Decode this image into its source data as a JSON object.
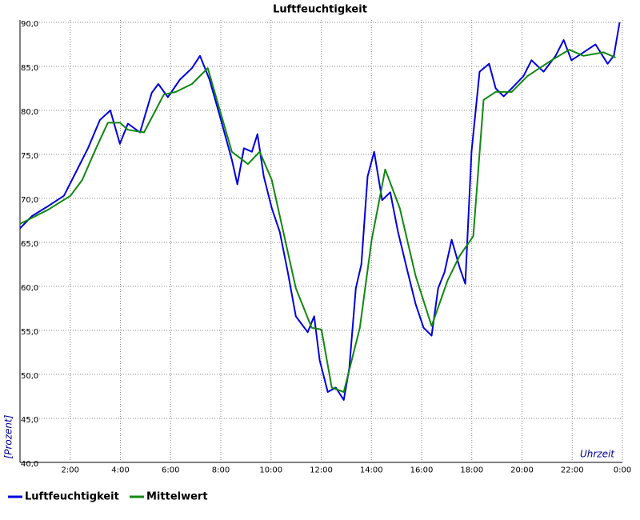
{
  "chart_data": {
    "type": "line",
    "title": "Luftfeuchtigkeit",
    "x_label": "Uhrzeit",
    "y_label": "[Prozent]",
    "xlim": [
      0,
      24
    ],
    "xticks": [
      {
        "value": 2,
        "label": "2:00"
      },
      {
        "value": 4,
        "label": "4:00"
      },
      {
        "value": 6,
        "label": "6:00"
      },
      {
        "value": 8,
        "label": "8:00"
      },
      {
        "value": 10,
        "label": "10:00"
      },
      {
        "value": 12,
        "label": "12:00"
      },
      {
        "value": 14,
        "label": "14:00"
      },
      {
        "value": 16,
        "label": "16:00"
      },
      {
        "value": 18,
        "label": "18:00"
      },
      {
        "value": 20,
        "label": "20:00"
      },
      {
        "value": 22,
        "label": "22:00"
      },
      {
        "value": 24,
        "label": "0:00"
      }
    ],
    "ylim": [
      40,
      90
    ],
    "yticks": [
      {
        "value": 40,
        "label": "40,0"
      },
      {
        "value": 45,
        "label": "45,0"
      },
      {
        "value": 50,
        "label": "50,0"
      },
      {
        "value": 55,
        "label": "55,0"
      },
      {
        "value": 60,
        "label": "60,0"
      },
      {
        "value": 65,
        "label": "65,0"
      },
      {
        "value": 70,
        "label": "70,0"
      },
      {
        "value": 75,
        "label": "75,0"
      },
      {
        "value": 80,
        "label": "80,0"
      },
      {
        "value": 85,
        "label": "85,0"
      },
      {
        "value": 90,
        "label": "90,0"
      }
    ],
    "grid": true,
    "series": [
      {
        "name": "Luftfeuchtigkeit",
        "color": "#0000dd",
        "x": [
          0,
          0.48,
          1.11,
          1.75,
          2.23,
          2.71,
          3.18,
          3.6,
          3.98,
          4.3,
          4.78,
          5.25,
          5.51,
          5.89,
          6.37,
          6.85,
          7.17,
          7.55,
          7.96,
          8.44,
          8.66,
          8.92,
          9.24,
          9.46,
          9.71,
          10.03,
          10.35,
          10.67,
          10.99,
          11.46,
          11.72,
          11.94,
          12.26,
          12.58,
          12.9,
          13.12,
          13.38,
          13.6,
          13.85,
          14.11,
          14.43,
          14.75,
          15.06,
          15.45,
          15.76,
          16.08,
          16.4,
          16.66,
          16.91,
          17.2,
          17.52,
          17.74,
          17.99,
          18.31,
          18.69,
          18.95,
          19.27,
          19.59,
          20.06,
          20.38,
          20.86,
          21.34,
          21.66,
          21.97,
          22.45,
          22.93,
          23.41,
          23.66,
          23.89
        ],
        "values": [
          66.6,
          68,
          69.1,
          70.3,
          73,
          75.7,
          78.9,
          80,
          76.2,
          78.5,
          77.5,
          82,
          83,
          81.5,
          83.5,
          84.8,
          86.2,
          83.5,
          79.4,
          74.4,
          71.6,
          75.7,
          75.3,
          77.3,
          72.5,
          68.9,
          66.2,
          61.6,
          56.6,
          54.8,
          56.6,
          51.6,
          48,
          48.5,
          47.1,
          50.7,
          59.8,
          62.5,
          72.5,
          75.3,
          69.8,
          70.7,
          66.2,
          61.6,
          58,
          55.3,
          54.4,
          59.8,
          61.6,
          65.3,
          62.1,
          60.3,
          75.3,
          84.4,
          85.3,
          82.5,
          81.6,
          82.5,
          83.9,
          85.7,
          84.4,
          86.2,
          88,
          85.7,
          86.6,
          87.5,
          85.3,
          86.2,
          90
        ]
      },
      {
        "name": "Mittelwert",
        "color": "#118811",
        "x": [
          0,
          1.11,
          2.01,
          2.48,
          3.03,
          3.5,
          3.98,
          4.3,
          4.94,
          5.73,
          6.21,
          6.85,
          7.48,
          8.44,
          9.08,
          9.55,
          10.03,
          10.99,
          11.62,
          12.01,
          12.42,
          12.9,
          13.54,
          14.01,
          14.55,
          15.13,
          15.76,
          16.4,
          17.04,
          17.52,
          18.06,
          18.47,
          18.95,
          19.59,
          20.22,
          21.18,
          21.88,
          22.45,
          23.25,
          23.73
        ],
        "values": [
          67.1,
          68.7,
          70.3,
          72.1,
          75.7,
          78.6,
          78.6,
          77.8,
          77.5,
          81.8,
          82.1,
          83,
          84.8,
          75.3,
          73.9,
          75.3,
          72.1,
          59.8,
          55.3,
          55.1,
          48.5,
          48,
          55.3,
          65.3,
          73.3,
          68.9,
          61.2,
          55.5,
          60.7,
          63.5,
          65.7,
          81.2,
          82.1,
          82.1,
          83.9,
          85.7,
          86.9,
          86.2,
          86.6,
          86
        ]
      }
    ]
  }
}
